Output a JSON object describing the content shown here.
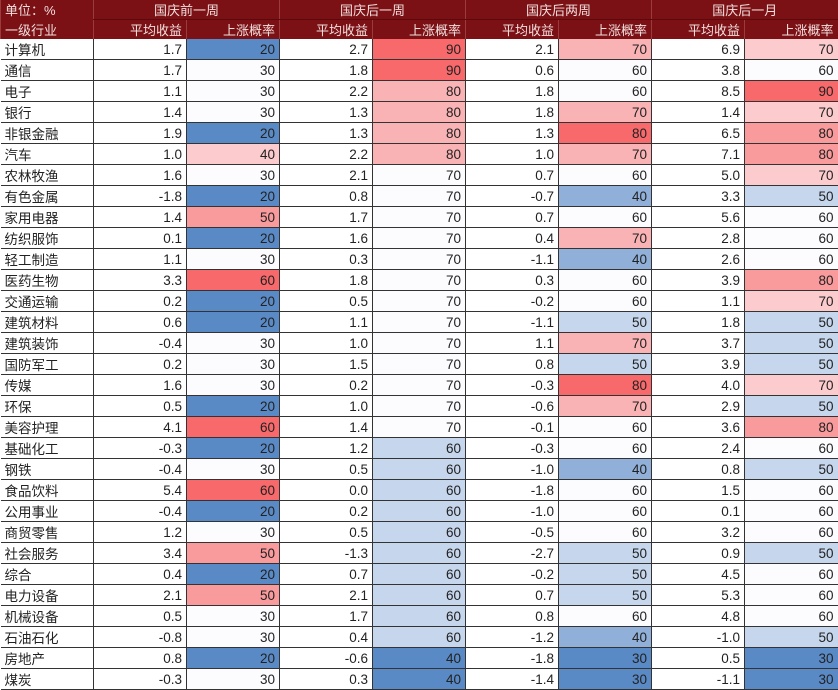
{
  "header": {
    "unit_label": "单位：%",
    "industry_label": "一级行业",
    "periods": [
      "国庆前一周",
      "国庆后一周",
      "国庆后两周",
      "国庆后一月"
    ],
    "avg_return_label": "平均收益",
    "up_prob_label": "上涨概率"
  },
  "colors": {
    "header_bg": "#7b1114",
    "low": "#5a8ac6",
    "mid": "#fcfcff",
    "high": "#f8696b"
  },
  "rows": [
    {
      "name": "计算机",
      "v": [
        1.7,
        20,
        2.7,
        90,
        2.1,
        70,
        6.9,
        70
      ]
    },
    {
      "name": "通信",
      "v": [
        1.7,
        30,
        1.8,
        90,
        0.6,
        60,
        3.8,
        60
      ]
    },
    {
      "name": "电子",
      "v": [
        1.1,
        30,
        2.2,
        80,
        1.8,
        60,
        8.5,
        90
      ]
    },
    {
      "name": "银行",
      "v": [
        1.4,
        30,
        1.3,
        80,
        1.8,
        70,
        1.4,
        70
      ]
    },
    {
      "name": "非银金融",
      "v": [
        1.9,
        20,
        1.3,
        80,
        1.3,
        80,
        6.5,
        80
      ]
    },
    {
      "name": "汽车",
      "v": [
        1.0,
        40,
        2.2,
        80,
        1.0,
        70,
        7.1,
        80
      ]
    },
    {
      "name": "农林牧渔",
      "v": [
        1.6,
        30,
        2.1,
        70,
        0.7,
        60,
        5.0,
        70
      ]
    },
    {
      "name": "有色金属",
      "v": [
        -1.8,
        20,
        0.8,
        70,
        -0.7,
        40,
        3.3,
        50
      ]
    },
    {
      "name": "家用电器",
      "v": [
        1.4,
        50,
        1.7,
        70,
        0.7,
        60,
        5.6,
        60
      ]
    },
    {
      "name": "纺织服饰",
      "v": [
        0.1,
        20,
        1.6,
        70,
        0.4,
        70,
        2.8,
        60
      ]
    },
    {
      "name": "轻工制造",
      "v": [
        1.1,
        30,
        0.3,
        70,
        -1.1,
        40,
        2.6,
        60
      ]
    },
    {
      "name": "医药生物",
      "v": [
        3.3,
        60,
        1.8,
        70,
        0.3,
        60,
        3.9,
        80
      ]
    },
    {
      "name": "交通运输",
      "v": [
        0.2,
        20,
        0.5,
        70,
        -0.2,
        60,
        1.1,
        70
      ]
    },
    {
      "name": "建筑材料",
      "v": [
        0.6,
        20,
        1.1,
        70,
        -1.1,
        50,
        1.8,
        50
      ]
    },
    {
      "name": "建筑装饰",
      "v": [
        -0.4,
        30,
        1.0,
        70,
        1.1,
        70,
        3.7,
        50
      ]
    },
    {
      "name": "国防军工",
      "v": [
        0.2,
        30,
        1.5,
        70,
        0.8,
        50,
        3.9,
        50
      ]
    },
    {
      "name": "传媒",
      "v": [
        1.6,
        30,
        0.2,
        70,
        -0.3,
        80,
        4.0,
        70
      ]
    },
    {
      "name": "环保",
      "v": [
        0.5,
        20,
        1.0,
        70,
        -0.6,
        70,
        2.9,
        50
      ]
    },
    {
      "name": "美容护理",
      "v": [
        4.1,
        60,
        1.4,
        70,
        -0.1,
        60,
        3.6,
        80
      ]
    },
    {
      "name": "基础化工",
      "v": [
        -0.3,
        20,
        1.2,
        60,
        -0.3,
        60,
        2.4,
        60
      ]
    },
    {
      "name": "钢铁",
      "v": [
        -0.4,
        30,
        0.5,
        60,
        -1.0,
        40,
        0.8,
        50
      ]
    },
    {
      "name": "食品饮料",
      "v": [
        5.4,
        60,
        0.0,
        60,
        -1.8,
        60,
        1.5,
        60
      ]
    },
    {
      "name": "公用事业",
      "v": [
        -0.4,
        20,
        0.2,
        60,
        -1.0,
        60,
        0.1,
        60
      ]
    },
    {
      "name": "商贸零售",
      "v": [
        1.2,
        30,
        0.5,
        60,
        -0.5,
        60,
        3.2,
        60
      ]
    },
    {
      "name": "社会服务",
      "v": [
        3.4,
        50,
        -1.3,
        60,
        -2.7,
        50,
        0.9,
        50
      ]
    },
    {
      "name": "综合",
      "v": [
        0.4,
        20,
        0.7,
        60,
        -0.2,
        50,
        4.5,
        60
      ]
    },
    {
      "name": "电力设备",
      "v": [
        2.1,
        50,
        2.1,
        60,
        0.7,
        50,
        5.3,
        60
      ]
    },
    {
      "name": "机械设备",
      "v": [
        0.5,
        30,
        1.7,
        60,
        0.8,
        60,
        4.8,
        60
      ]
    },
    {
      "name": "石油石化",
      "v": [
        -0.8,
        30,
        0.4,
        60,
        -1.2,
        40,
        -1.0,
        50
      ]
    },
    {
      "name": "房地产",
      "v": [
        0.8,
        20,
        -0.6,
        40,
        -1.8,
        30,
        0.5,
        30
      ]
    },
    {
      "name": "煤炭",
      "v": [
        -0.3,
        30,
        0.3,
        40,
        -1.4,
        30,
        -1.1,
        30
      ]
    }
  ]
}
